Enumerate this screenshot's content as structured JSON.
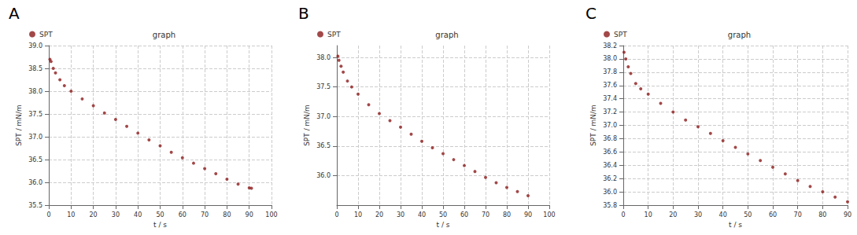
{
  "chart_data": [
    {
      "type": "scatter",
      "panel": "A",
      "title": "graph",
      "x_label": "t / s",
      "y_label": "SPT / mN/m",
      "series": [
        {
          "name": "SPT",
          "color": "#8b1a1a",
          "marker": "circle",
          "x": [
            0.5,
            1,
            2,
            3,
            5,
            7,
            10,
            15,
            20,
            25,
            30,
            35,
            40,
            45,
            50,
            55,
            60,
            65,
            70,
            75,
            80,
            85,
            90,
            91
          ],
          "values": [
            38.7,
            38.65,
            38.5,
            38.4,
            38.25,
            38.12,
            38.0,
            37.83,
            37.68,
            37.52,
            37.38,
            37.23,
            37.08,
            36.93,
            36.8,
            36.66,
            36.54,
            36.42,
            36.3,
            36.19,
            36.07,
            35.96,
            35.88,
            35.87
          ]
        }
      ],
      "xlim": [
        0,
        100
      ],
      "xticks": [
        0,
        10,
        20,
        30,
        40,
        50,
        60,
        70,
        80,
        90,
        100
      ],
      "ylim": [
        35.5,
        39.0
      ],
      "yticks": [
        {
          "value": 35.5,
          "label": "35.5"
        },
        {
          "value": 36,
          "label": "36.0"
        },
        {
          "value": 36.5,
          "label": "36.5"
        },
        {
          "value": 37,
          "label": "37.0"
        },
        {
          "value": 37.5,
          "label": "37.5"
        },
        {
          "value": 38,
          "label": "38.0"
        },
        {
          "value": 38.5,
          "label": "38.5"
        },
        {
          "value": 39,
          "label": "39.0"
        }
      ],
      "grid": true,
      "legend": "top-left"
    },
    {
      "type": "scatter",
      "panel": "B",
      "title": "graph",
      "x_label": "t / s",
      "y_label": "SPT / mN/m",
      "series": [
        {
          "name": "SPT",
          "color": "#8b1a1a",
          "marker": "circle",
          "x": [
            0.5,
            1,
            2,
            3,
            5,
            7,
            10,
            15,
            20,
            25,
            30,
            35,
            40,
            45,
            50,
            55,
            60,
            65,
            70,
            75,
            80,
            85,
            90
          ],
          "values": [
            38.02,
            37.95,
            37.85,
            37.75,
            37.6,
            37.5,
            37.38,
            37.2,
            37.05,
            36.93,
            36.82,
            36.7,
            36.58,
            36.47,
            36.37,
            36.27,
            36.17,
            36.07,
            35.97,
            35.88,
            35.8,
            35.73,
            35.66
          ]
        }
      ],
      "xlim": [
        0,
        100
      ],
      "xticks": [
        0,
        10,
        20,
        30,
        40,
        50,
        60,
        70,
        80,
        90,
        100
      ],
      "ylim": [
        35.5,
        38.2
      ],
      "yticks": [
        {
          "value": 36,
          "label": "36.0"
        },
        {
          "value": 36.5,
          "label": "36.5"
        },
        {
          "value": 37,
          "label": "37.0"
        },
        {
          "value": 37.5,
          "label": "37.5"
        },
        {
          "value": 38,
          "label": "38.0"
        }
      ],
      "grid": true,
      "legend": "top-left"
    },
    {
      "type": "scatter",
      "panel": "C",
      "title": "graph",
      "x_label": "t / s",
      "y_label": "SPT / mN/m",
      "series": [
        {
          "name": "SPT",
          "color": "#8b1a1a",
          "marker": "circle",
          "x": [
            0.3,
            1,
            2,
            3,
            5,
            7,
            10,
            15,
            20,
            25,
            30,
            35,
            40,
            45,
            50,
            55,
            60,
            65,
            70,
            75,
            80,
            85,
            90
          ],
          "values": [
            38.1,
            38.0,
            37.88,
            37.78,
            37.63,
            37.55,
            37.47,
            37.33,
            37.2,
            37.08,
            36.98,
            36.88,
            36.77,
            36.67,
            36.57,
            36.47,
            36.37,
            36.27,
            36.17,
            36.08,
            36.0,
            35.92,
            35.85
          ]
        }
      ],
      "xlim": [
        0,
        90
      ],
      "xticks": [
        0,
        10,
        20,
        30,
        40,
        50,
        60,
        70,
        80,
        90
      ],
      "ylim": [
        35.8,
        38.2
      ],
      "yticks": [
        {
          "value": 35.8,
          "label": "35.8"
        },
        {
          "value": 36,
          "label": "36.0"
        },
        {
          "value": 36.2,
          "label": "36.2"
        },
        {
          "value": 36.4,
          "label": "36.4"
        },
        {
          "value": 36.6,
          "label": "36.6"
        },
        {
          "value": 36.8,
          "label": "36.8"
        },
        {
          "value": 37,
          "label": "37.0"
        },
        {
          "value": 37.2,
          "label": "37.2"
        },
        {
          "value": 37.4,
          "label": "37.4"
        },
        {
          "value": 37.6,
          "label": "37.6"
        },
        {
          "value": 37.8,
          "label": "37.8"
        },
        {
          "value": 38,
          "label": "38.0"
        },
        {
          "value": 38.2,
          "label": "38.2"
        }
      ],
      "grid": true,
      "legend": "top-left"
    }
  ]
}
